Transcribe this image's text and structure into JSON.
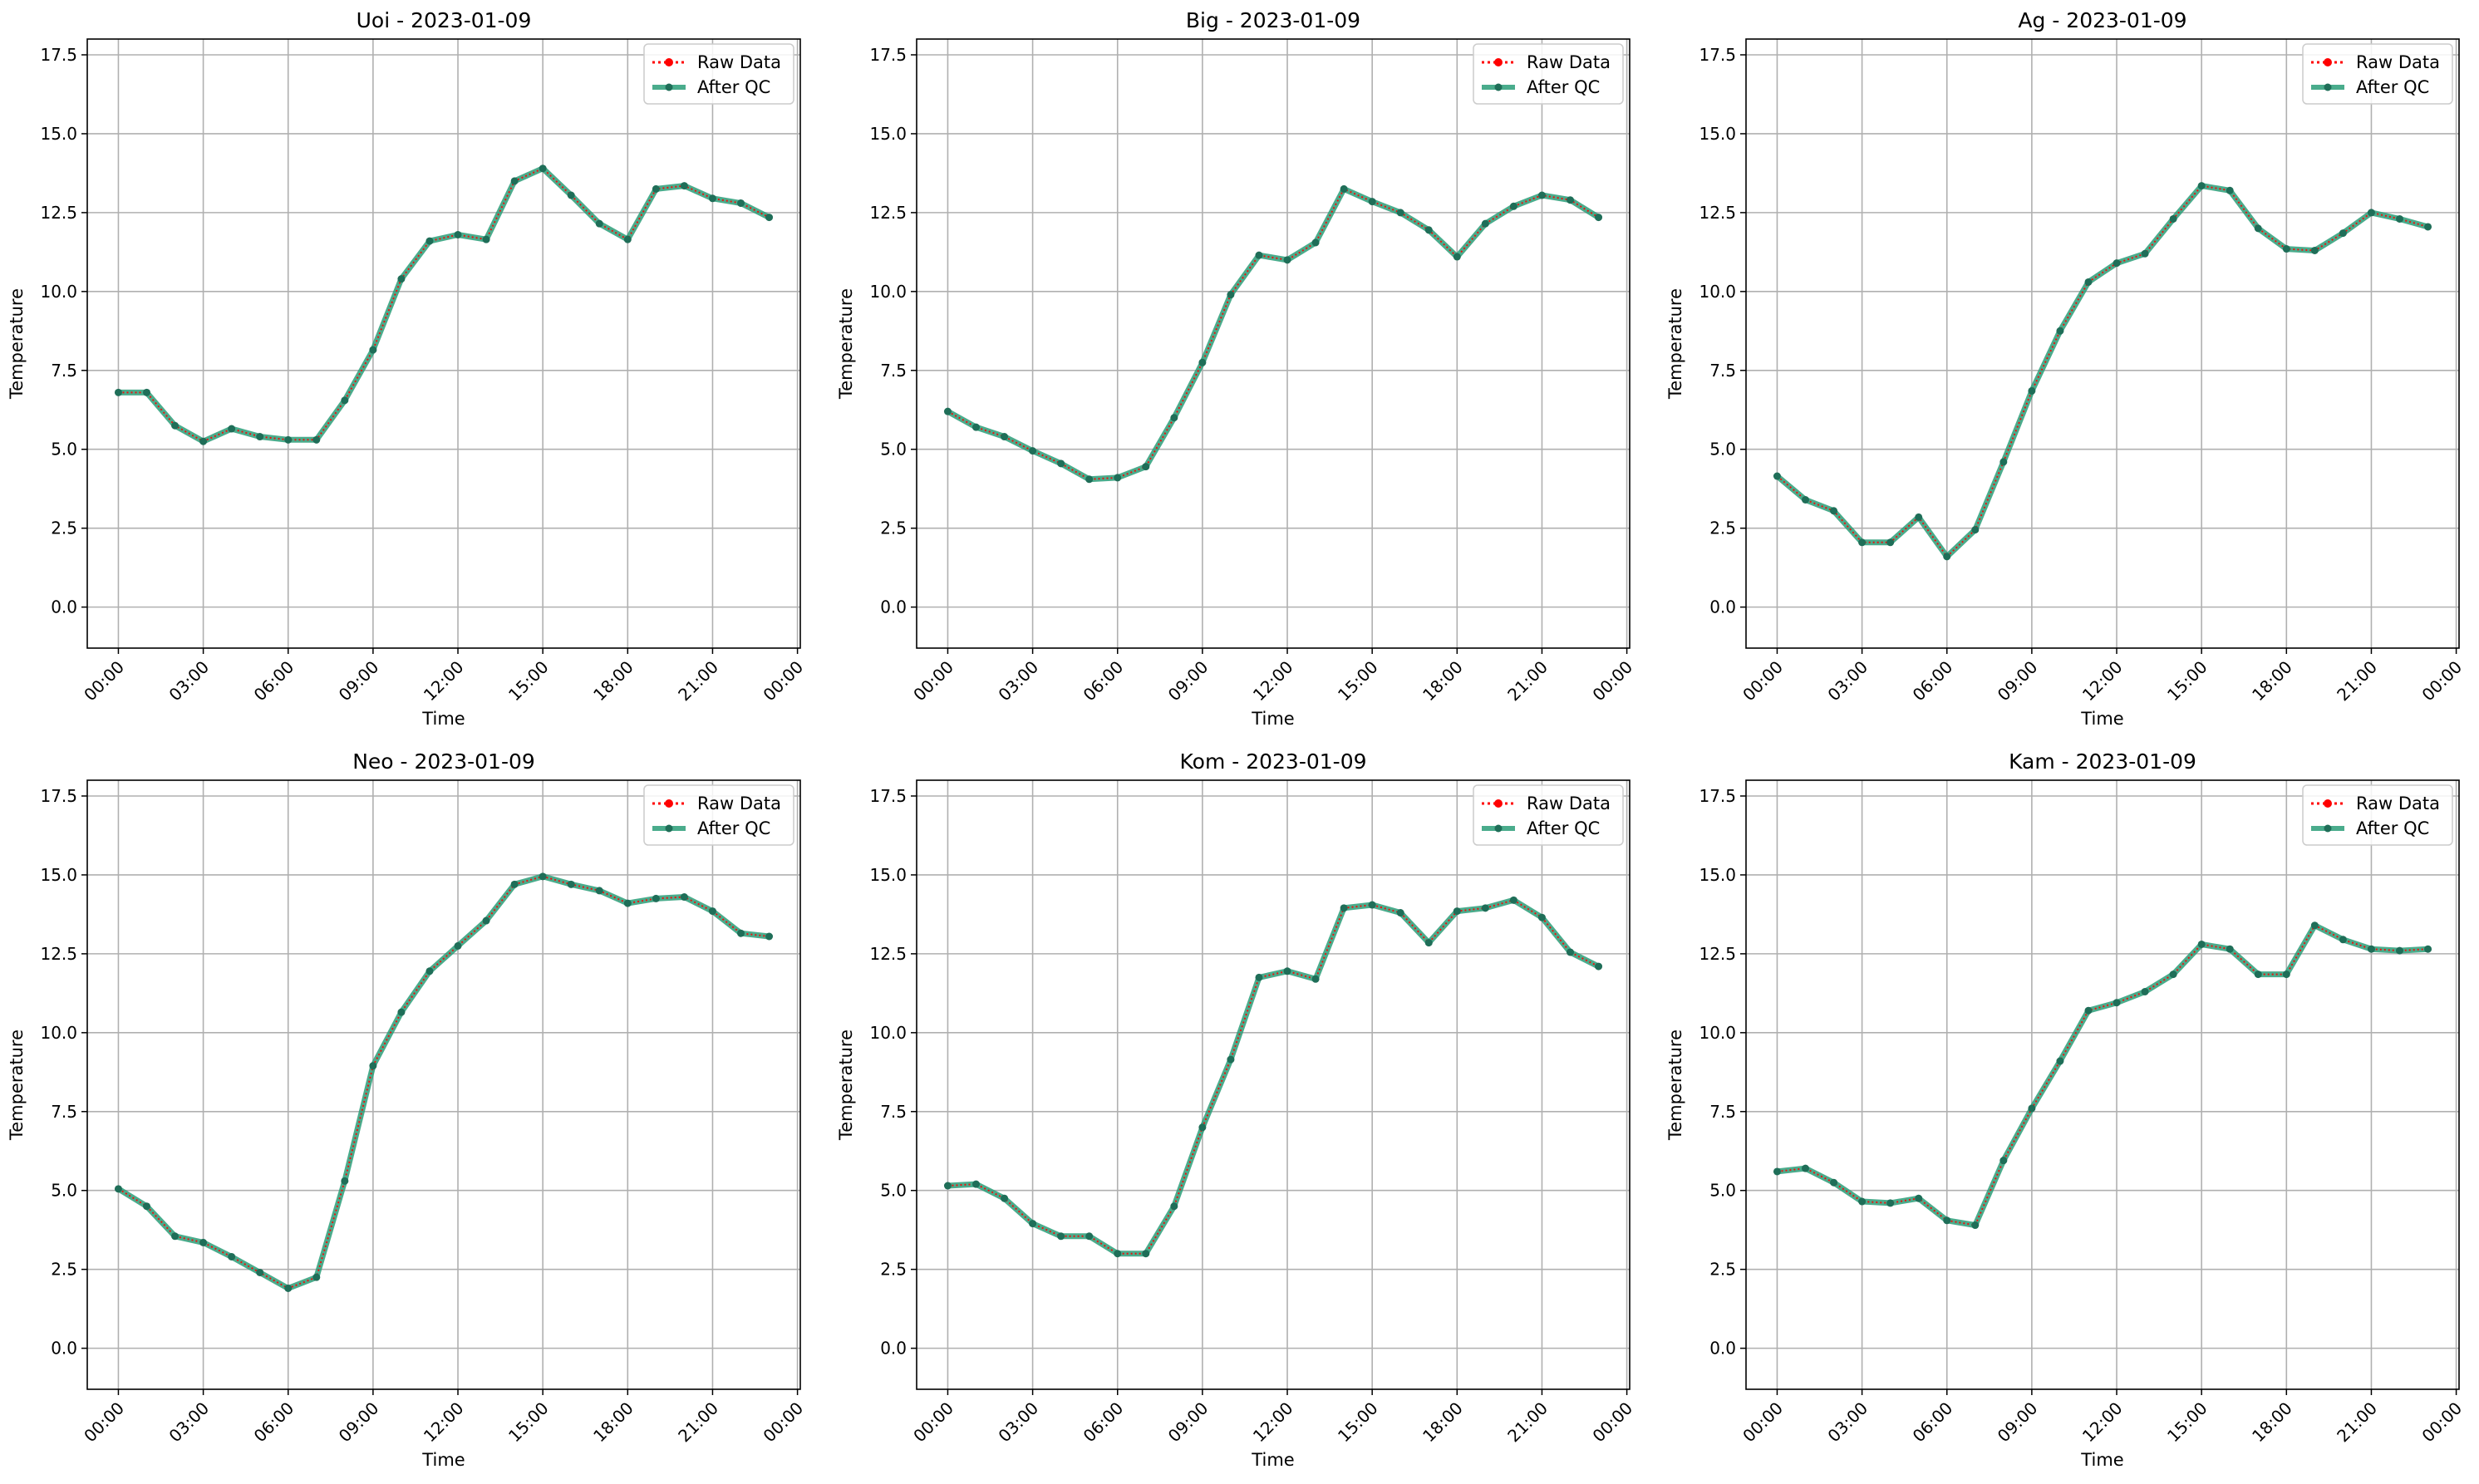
{
  "colors": {
    "raw": "#ff0000",
    "qc": "#2a9d78",
    "qc_marker": "#1f6e58",
    "grid": "#b0b0b0",
    "axes": "#000000"
  },
  "legend": {
    "placement": "top-right",
    "entries": [
      "Raw Data",
      "After QC"
    ]
  },
  "chart_data": [
    {
      "type": "line",
      "title": "Uoi - 2023-01-09",
      "xlabel": "Time",
      "ylabel": "Temperature",
      "grid": true,
      "ylim": [
        -1.3,
        18.0
      ],
      "xlim": [
        -1.1,
        24.1
      ],
      "yticks": [
        "0.0",
        "2.5",
        "5.0",
        "7.5",
        "10.0",
        "12.5",
        "15.0",
        "17.5"
      ],
      "xticks": [
        "00:00",
        "03:00",
        "06:00",
        "09:00",
        "12:00",
        "15:00",
        "18:00",
        "21:00",
        "00:00"
      ],
      "x_hours": [
        0,
        1,
        2,
        3,
        4,
        5,
        6,
        7,
        8,
        9,
        10,
        11,
        12,
        13,
        14,
        15,
        16,
        17,
        18,
        19,
        20,
        21,
        22,
        23
      ],
      "series": [
        {
          "name": "Raw Data",
          "values": [
            6.8,
            6.8,
            5.75,
            5.25,
            5.65,
            5.4,
            5.3,
            5.3,
            6.55,
            8.15,
            10.4,
            11.6,
            11.8,
            11.65,
            13.5,
            13.9,
            13.05,
            12.15,
            11.65,
            13.25,
            13.35,
            12.95,
            12.8,
            12.35
          ]
        },
        {
          "name": "After QC",
          "values": [
            6.8,
            6.8,
            5.75,
            5.25,
            5.65,
            5.4,
            5.3,
            5.3,
            6.55,
            8.15,
            10.4,
            11.6,
            11.8,
            11.65,
            13.5,
            13.9,
            13.05,
            12.15,
            11.65,
            13.25,
            13.35,
            12.95,
            12.8,
            12.35
          ]
        }
      ]
    },
    {
      "type": "line",
      "title": "Big - 2023-01-09",
      "xlabel": "Time",
      "ylabel": "Temperature",
      "grid": true,
      "ylim": [
        -1.3,
        18.0
      ],
      "xlim": [
        -1.1,
        24.1
      ],
      "yticks": [
        "0.0",
        "2.5",
        "5.0",
        "7.5",
        "10.0",
        "12.5",
        "15.0",
        "17.5"
      ],
      "xticks": [
        "00:00",
        "03:00",
        "06:00",
        "09:00",
        "12:00",
        "15:00",
        "18:00",
        "21:00",
        "00:00"
      ],
      "x_hours": [
        0,
        1,
        2,
        3,
        4,
        5,
        6,
        7,
        8,
        9,
        10,
        11,
        12,
        13,
        14,
        15,
        16,
        17,
        18,
        19,
        20,
        21,
        22,
        23
      ],
      "series": [
        {
          "name": "Raw Data",
          "values": [
            6.2,
            5.7,
            5.4,
            4.95,
            4.55,
            4.05,
            4.1,
            4.45,
            6.0,
            7.75,
            9.9,
            11.15,
            11.0,
            11.55,
            13.25,
            12.85,
            12.5,
            11.95,
            11.1,
            12.15,
            12.7,
            13.05,
            12.9,
            12.35
          ]
        },
        {
          "name": "After QC",
          "values": [
            6.2,
            5.7,
            5.4,
            4.95,
            4.55,
            4.05,
            4.1,
            4.45,
            6.0,
            7.75,
            9.9,
            11.15,
            11.0,
            11.55,
            13.25,
            12.85,
            12.5,
            11.95,
            11.1,
            12.15,
            12.7,
            13.05,
            12.9,
            12.35
          ]
        }
      ]
    },
    {
      "type": "line",
      "title": "Ag - 2023-01-09",
      "xlabel": "Time",
      "ylabel": "Temperature",
      "grid": true,
      "ylim": [
        -1.3,
        18.0
      ],
      "xlim": [
        -1.1,
        24.1
      ],
      "yticks": [
        "0.0",
        "2.5",
        "5.0",
        "7.5",
        "10.0",
        "12.5",
        "15.0",
        "17.5"
      ],
      "xticks": [
        "00:00",
        "03:00",
        "06:00",
        "09:00",
        "12:00",
        "15:00",
        "18:00",
        "21:00",
        "00:00"
      ],
      "x_hours": [
        0,
        1,
        2,
        3,
        4,
        5,
        6,
        7,
        8,
        9,
        10,
        11,
        12,
        13,
        14,
        15,
        16,
        17,
        18,
        19,
        20,
        21,
        22,
        23
      ],
      "series": [
        {
          "name": "Raw Data",
          "values": [
            4.15,
            3.4,
            3.05,
            2.05,
            2.05,
            2.85,
            1.6,
            2.45,
            4.6,
            6.85,
            8.75,
            10.3,
            10.9,
            11.2,
            12.3,
            13.35,
            13.2,
            12.0,
            11.35,
            11.3,
            11.85,
            12.5,
            12.3,
            12.05
          ]
        },
        {
          "name": "After QC",
          "values": [
            4.15,
            3.4,
            3.05,
            2.05,
            2.05,
            2.85,
            1.6,
            2.45,
            4.6,
            6.85,
            8.75,
            10.3,
            10.9,
            11.2,
            12.3,
            13.35,
            13.2,
            12.0,
            11.35,
            11.3,
            11.85,
            12.5,
            12.3,
            12.05
          ]
        }
      ]
    },
    {
      "type": "line",
      "title": "Neo - 2023-01-09",
      "xlabel": "Time",
      "ylabel": "Temperature",
      "grid": true,
      "ylim": [
        -1.3,
        18.0
      ],
      "xlim": [
        -1.1,
        24.1
      ],
      "yticks": [
        "0.0",
        "2.5",
        "5.0",
        "7.5",
        "10.0",
        "12.5",
        "15.0",
        "17.5"
      ],
      "xticks": [
        "00:00",
        "03:00",
        "06:00",
        "09:00",
        "12:00",
        "15:00",
        "18:00",
        "21:00",
        "00:00"
      ],
      "x_hours": [
        0,
        1,
        2,
        3,
        4,
        5,
        6,
        7,
        8,
        9,
        10,
        11,
        12,
        13,
        14,
        15,
        16,
        17,
        18,
        19,
        20,
        21,
        22,
        23
      ],
      "series": [
        {
          "name": "Raw Data",
          "values": [
            5.05,
            4.5,
            3.55,
            3.35,
            2.9,
            2.4,
            1.9,
            2.25,
            5.3,
            8.95,
            10.65,
            11.95,
            12.75,
            13.55,
            14.7,
            14.95,
            14.7,
            14.5,
            14.1,
            14.25,
            14.3,
            13.85,
            13.15,
            13.05
          ]
        },
        {
          "name": "After QC",
          "values": [
            5.05,
            4.5,
            3.55,
            3.35,
            2.9,
            2.4,
            1.9,
            2.25,
            5.3,
            8.95,
            10.65,
            11.95,
            12.75,
            13.55,
            14.7,
            14.95,
            14.7,
            14.5,
            14.1,
            14.25,
            14.3,
            13.85,
            13.15,
            13.05
          ]
        }
      ]
    },
    {
      "type": "line",
      "title": "Kom - 2023-01-09",
      "xlabel": "Time",
      "ylabel": "Temperature",
      "grid": true,
      "ylim": [
        -1.3,
        18.0
      ],
      "xlim": [
        -1.1,
        24.1
      ],
      "yticks": [
        "0.0",
        "2.5",
        "5.0",
        "7.5",
        "10.0",
        "12.5",
        "15.0",
        "17.5"
      ],
      "xticks": [
        "00:00",
        "03:00",
        "06:00",
        "09:00",
        "12:00",
        "15:00",
        "18:00",
        "21:00",
        "00:00"
      ],
      "x_hours": [
        0,
        1,
        2,
        3,
        4,
        5,
        6,
        7,
        8,
        9,
        10,
        11,
        12,
        13,
        14,
        15,
        16,
        17,
        18,
        19,
        20,
        21,
        22,
        23
      ],
      "series": [
        {
          "name": "Raw Data",
          "values": [
            5.15,
            5.2,
            4.75,
            3.95,
            3.55,
            3.55,
            3.0,
            3.0,
            4.5,
            7.0,
            9.15,
            11.75,
            11.95,
            11.7,
            13.95,
            14.05,
            13.8,
            12.85,
            13.85,
            13.95,
            14.2,
            13.65,
            12.55,
            12.1
          ]
        },
        {
          "name": "After QC",
          "values": [
            5.15,
            5.2,
            4.75,
            3.95,
            3.55,
            3.55,
            3.0,
            3.0,
            4.5,
            7.0,
            9.15,
            11.75,
            11.95,
            11.7,
            13.95,
            14.05,
            13.8,
            12.85,
            13.85,
            13.95,
            14.2,
            13.65,
            12.55,
            12.1
          ]
        }
      ]
    },
    {
      "type": "line",
      "title": "Kam - 2023-01-09",
      "xlabel": "Time",
      "ylabel": "Temperature",
      "grid": true,
      "ylim": [
        -1.3,
        18.0
      ],
      "xlim": [
        -1.1,
        24.1
      ],
      "yticks": [
        "0.0",
        "2.5",
        "5.0",
        "7.5",
        "10.0",
        "12.5",
        "15.0",
        "17.5"
      ],
      "xticks": [
        "00:00",
        "03:00",
        "06:00",
        "09:00",
        "12:00",
        "15:00",
        "18:00",
        "21:00",
        "00:00"
      ],
      "x_hours": [
        0,
        1,
        2,
        3,
        4,
        5,
        6,
        7,
        8,
        9,
        10,
        11,
        12,
        13,
        14,
        15,
        16,
        17,
        18,
        19,
        20,
        21,
        22,
        23
      ],
      "series": [
        {
          "name": "Raw Data",
          "values": [
            5.6,
            5.7,
            5.25,
            4.65,
            4.6,
            4.75,
            4.05,
            3.9,
            5.95,
            7.6,
            9.1,
            10.7,
            10.95,
            11.3,
            11.85,
            12.8,
            12.65,
            11.85,
            11.85,
            13.4,
            12.95,
            12.65,
            12.6,
            12.65
          ]
        },
        {
          "name": "After QC",
          "values": [
            5.6,
            5.7,
            5.25,
            4.65,
            4.6,
            4.75,
            4.05,
            3.9,
            5.95,
            7.6,
            9.1,
            10.7,
            10.95,
            11.3,
            11.85,
            12.8,
            12.65,
            11.85,
            11.85,
            13.4,
            12.95,
            12.65,
            12.6,
            12.65
          ]
        }
      ]
    }
  ]
}
